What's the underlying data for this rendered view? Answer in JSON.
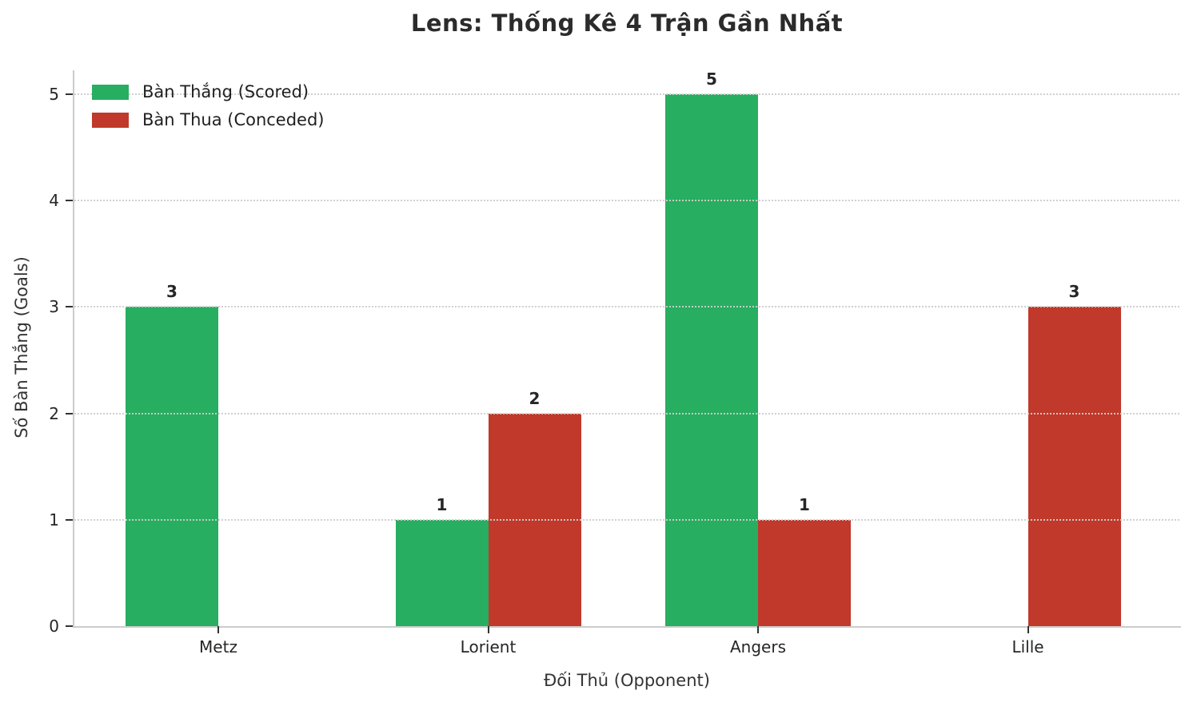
{
  "title": "Lens: Thống Kê 4 Trận Gần Nhất",
  "chart_data": {
    "type": "bar",
    "title": "Lens: Thống Kê 4 Trận Gần Nhất",
    "xlabel": "Đối Thủ (Opponent)",
    "ylabel": "Số Bàn Thắng (Goals)",
    "categories": [
      "Metz",
      "Lorient",
      "Angers",
      "Lille"
    ],
    "series": [
      {
        "name": "Bàn Thắng (Scored)",
        "color": "#27ae60",
        "values": [
          3,
          1,
          5,
          0
        ]
      },
      {
        "name": "Bàn Thua (Conceded)",
        "color": "#c0392b",
        "values": [
          0,
          2,
          1,
          3
        ]
      }
    ],
    "ylim": [
      0,
      5
    ],
    "yticks": [
      0,
      1,
      2,
      3,
      4,
      5
    ],
    "grid": "horizontal dotted, drawn above bars",
    "legend_position": "upper-left",
    "bar_labels": "values shown above non-zero bars",
    "colors": {
      "scored": "#27ae60",
      "conceded": "#c0392b",
      "spine": "#cccccc",
      "text": "#262626"
    }
  }
}
